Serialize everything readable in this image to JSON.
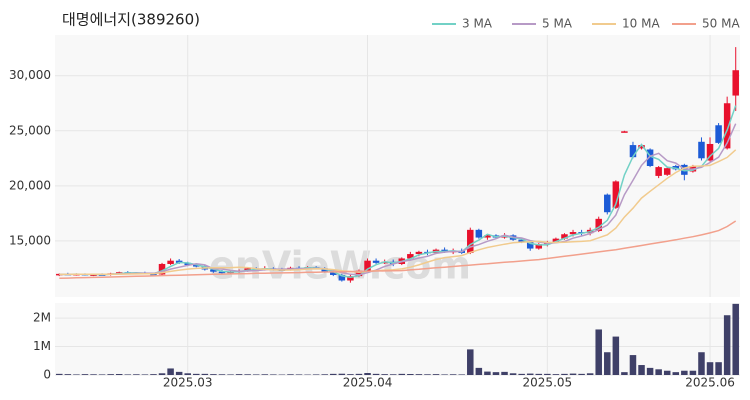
{
  "chart_data": {
    "type": "candlestick",
    "title": "대명에너지(389260)",
    "watermark": "enVieW.com",
    "categories": [
      null,
      null,
      null,
      null,
      null,
      null,
      null,
      null,
      null,
      null,
      null,
      null,
      null,
      null,
      null,
      "2025.03",
      null,
      null,
      null,
      null,
      null,
      null,
      null,
      null,
      null,
      null,
      null,
      null,
      null,
      null,
      null,
      null,
      null,
      null,
      null,
      null,
      "2025.04",
      null,
      null,
      null,
      null,
      null,
      null,
      null,
      null,
      null,
      null,
      null,
      null,
      null,
      null,
      null,
      null,
      null,
      null,
      null,
      null,
      "2025.05",
      null,
      null,
      null,
      null,
      null,
      null,
      null,
      null,
      null,
      null,
      null,
      null,
      null,
      null,
      null,
      null,
      null,
      null,
      "2025.06",
      null,
      null,
      null
    ],
    "open": [
      11900,
      12000,
      11950,
      12000,
      11900,
      11950,
      11900,
      12050,
      12150,
      12050,
      12100,
      12000,
      11950,
      12900,
      13200,
      13000,
      12800,
      12700,
      12400,
      12200,
      12100,
      12200,
      12300,
      12500,
      12400,
      12500,
      12400,
      12350,
      12550,
      12500,
      12600,
      12500,
      12200,
      11900,
      11400,
      11800,
      12300,
      13200,
      13000,
      13100,
      12900,
      13400,
      13800,
      14000,
      13900,
      14200,
      14000,
      14100,
      13900,
      16000,
      15300,
      15500,
      15300,
      15500,
      15100,
      14900,
      14300,
      14700,
      14900,
      15200,
      15600,
      15800,
      15700,
      15900,
      19200,
      18000,
      24850,
      23700,
      23400,
      23300,
      20900,
      21000,
      21800,
      21900,
      21300,
      24000,
      22300,
      25500,
      23400,
      28200
    ],
    "high": [
      12050,
      12100,
      12050,
      12050,
      12000,
      12050,
      12100,
      12200,
      12250,
      12150,
      12200,
      12100,
      13000,
      13400,
      13350,
      13100,
      12950,
      12800,
      12500,
      12350,
      12300,
      12400,
      12600,
      12600,
      12700,
      12600,
      12550,
      12650,
      12700,
      12700,
      12700,
      12600,
      12300,
      12000,
      11900,
      12400,
      13400,
      13400,
      13300,
      13300,
      13500,
      14000,
      14100,
      14200,
      14300,
      14400,
      14300,
      14300,
      16200,
      16100,
      15600,
      15600,
      15700,
      15600,
      15300,
      15000,
      14800,
      15000,
      15300,
      15700,
      16000,
      16000,
      16200,
      17200,
      19300,
      20500,
      25000,
      24000,
      23800,
      23400,
      21800,
      21700,
      21900,
      22000,
      21900,
      24400,
      24400,
      25700,
      28100,
      32600
    ],
    "low": [
      11800,
      11900,
      11850,
      11850,
      11800,
      11850,
      11850,
      11950,
      12000,
      11950,
      11950,
      11900,
      11900,
      12800,
      12900,
      12700,
      12600,
      12300,
      12100,
      12000,
      12000,
      12100,
      12200,
      12300,
      12300,
      12300,
      12250,
      12300,
      12400,
      12400,
      12400,
      12100,
      11800,
      11300,
      11200,
      11700,
      12200,
      12900,
      12900,
      12700,
      12800,
      13300,
      13600,
      13700,
      13800,
      13900,
      13800,
      13800,
      13800,
      15200,
      15100,
      15200,
      15200,
      15000,
      14800,
      14100,
      14200,
      14500,
      14800,
      15100,
      15400,
      15500,
      15500,
      15800,
      17400,
      17900,
      24850,
      22500,
      23300,
      21700,
      20700,
      20900,
      21400,
      20500,
      21200,
      22300,
      22200,
      23800,
      23300,
      26800
    ],
    "close": [
      12000,
      11950,
      12000,
      11900,
      11950,
      11900,
      12050,
      12150,
      12050,
      12100,
      12000,
      11950,
      12900,
      13200,
      13000,
      12800,
      12700,
      12400,
      12200,
      12100,
      12200,
      12300,
      12500,
      12400,
      12500,
      12400,
      12350,
      12550,
      12500,
      12600,
      12500,
      12200,
      11900,
      11400,
      11800,
      12300,
      13200,
      13000,
      13100,
      12900,
      13400,
      13800,
      14000,
      13900,
      14200,
      14000,
      14100,
      13900,
      16000,
      15300,
      15500,
      15300,
      15500,
      15100,
      14900,
      14300,
      14700,
      14900,
      15200,
      15600,
      15800,
      15700,
      16000,
      17000,
      17600,
      20400,
      24950,
      22600,
      23700,
      21800,
      21700,
      21600,
      21500,
      21000,
      21800,
      22500,
      23800,
      23900,
      27500,
      30500
    ],
    "up_color": "#e8112d",
    "down_color": "#1c5bd6",
    "series": [
      {
        "name": "3 MA",
        "color": "#72d1c6",
        "values": [
          11950,
          11950,
          11980,
          11950,
          11950,
          11920,
          11970,
          12030,
          12080,
          12100,
          12050,
          12020,
          12280,
          12680,
          13030,
          13000,
          12830,
          12630,
          12430,
          12230,
          12170,
          12200,
          12330,
          12400,
          12470,
          12430,
          12420,
          12430,
          12470,
          12550,
          12530,
          12430,
          12200,
          11830,
          11700,
          11830,
          12430,
          12830,
          13100,
          13000,
          13130,
          13370,
          13730,
          13900,
          14030,
          14030,
          14100,
          14000,
          14670,
          15070,
          15600,
          15370,
          15430,
          15300,
          15170,
          14770,
          14630,
          14630,
          14930,
          15230,
          15530,
          15700,
          15830,
          16230,
          16870,
          18330,
          20980,
          22650,
          23750,
          22700,
          22400,
          21700,
          21600,
          21370,
          21430,
          21770,
          22700,
          23400,
          25070,
          27300
        ]
      },
      {
        "name": "5 MA",
        "color": "#b79ac6",
        "values": [
          11950,
          11950,
          11970,
          11960,
          11960,
          11940,
          11960,
          11990,
          12010,
          12050,
          12070,
          12050,
          12200,
          12430,
          12610,
          12770,
          12920,
          12820,
          12460,
          12440,
          12320,
          12240,
          12260,
          12300,
          12380,
          12420,
          12430,
          12440,
          12460,
          12480,
          12500,
          12470,
          12340,
          12120,
          11960,
          11920,
          12120,
          12340,
          12680,
          12900,
          13120,
          13240,
          13440,
          13600,
          13860,
          13980,
          14040,
          14020,
          14440,
          14660,
          14960,
          15200,
          15520,
          15340,
          15260,
          15020,
          14900,
          14780,
          14820,
          14940,
          15240,
          15440,
          15660,
          16020,
          16420,
          17340,
          19190,
          20510,
          21850,
          22690,
          22950,
          22280,
          22060,
          21520,
          21520,
          21680,
          22120,
          22600,
          23900,
          25640
        ]
      },
      {
        "name": "10 MA",
        "color": "#f1cb8e",
        "values": [
          11950,
          11950,
          11960,
          11960,
          11960,
          11960,
          11960,
          11980,
          11990,
          12000,
          12010,
          12010,
          12100,
          12230,
          12340,
          12430,
          12500,
          12530,
          12550,
          12550,
          12570,
          12610,
          12570,
          12470,
          12420,
          12370,
          12340,
          12350,
          12380,
          12430,
          12460,
          12450,
          12390,
          12290,
          12220,
          12150,
          12230,
          12280,
          12340,
          12370,
          12450,
          12610,
          12820,
          13070,
          13310,
          13480,
          13570,
          13660,
          13950,
          14190,
          14400,
          14550,
          14700,
          14820,
          14890,
          14920,
          14960,
          14860,
          14850,
          14880,
          14910,
          14950,
          15010,
          15280,
          15550,
          16160,
          17160,
          17970,
          18880,
          19500,
          20090,
          20680,
          21210,
          21610,
          21790,
          21800,
          21850,
          22200,
          22580,
          23270
        ]
      },
      {
        "name": "50 MA",
        "color": "#f2a08c",
        "values": [
          11600,
          11620,
          11640,
          11660,
          11680,
          11700,
          11720,
          11740,
          11760,
          11780,
          11800,
          11820,
          11840,
          11860,
          11880,
          11900,
          11920,
          11940,
          11960,
          11980,
          12000,
          12020,
          12030,
          12050,
          12060,
          12080,
          12090,
          12110,
          12120,
          12140,
          12150,
          12170,
          12180,
          12200,
          12210,
          12230,
          12240,
          12260,
          12270,
          12290,
          12300,
          12360,
          12420,
          12490,
          12550,
          12610,
          12670,
          12740,
          12800,
          12860,
          12920,
          12990,
          13050,
          13110,
          13170,
          13240,
          13300,
          13400,
          13500,
          13600,
          13700,
          13800,
          13900,
          14000,
          14100,
          14200,
          14320,
          14450,
          14580,
          14710,
          14840,
          14970,
          15100,
          15240,
          15380,
          15540,
          15720,
          15930,
          16300,
          16800
        ]
      }
    ],
    "ylim": [
      9900,
      33700
    ],
    "yticks": [
      {
        "value": 15000,
        "label": "15,000"
      },
      {
        "value": 20000,
        "label": "20,000"
      },
      {
        "value": 25000,
        "label": "25,000"
      },
      {
        "value": 30000,
        "label": "30,000"
      }
    ],
    "volume": [
      40000,
      30000,
      20000,
      30000,
      25000,
      20000,
      30000,
      35000,
      20000,
      25000,
      20000,
      30000,
      60000,
      230000,
      110000,
      60000,
      40000,
      40000,
      30000,
      25000,
      20000,
      30000,
      25000,
      20000,
      25000,
      20000,
      15000,
      25000,
      20000,
      15000,
      20000,
      25000,
      40000,
      45000,
      30000,
      40000,
      70000,
      40000,
      30000,
      25000,
      40000,
      35000,
      30000,
      25000,
      30000,
      20000,
      25000,
      20000,
      900000,
      250000,
      120000,
      100000,
      110000,
      60000,
      40000,
      50000,
      40000,
      40000,
      30000,
      40000,
      50000,
      40000,
      60000,
      1600000,
      800000,
      1350000,
      100000,
      700000,
      350000,
      250000,
      200000,
      150000,
      100000,
      150000,
      150000,
      800000,
      450000,
      450000,
      2100000,
      2500000
    ],
    "volume_color": "#3f4068",
    "volume_ylim": [
      0,
      2530000
    ],
    "volume_yticks": [
      0,
      {
        "value": 1000000,
        "label": "1M"
      },
      {
        "value": 2000000,
        "label": "2M"
      }
    ],
    "grid": true
  }
}
